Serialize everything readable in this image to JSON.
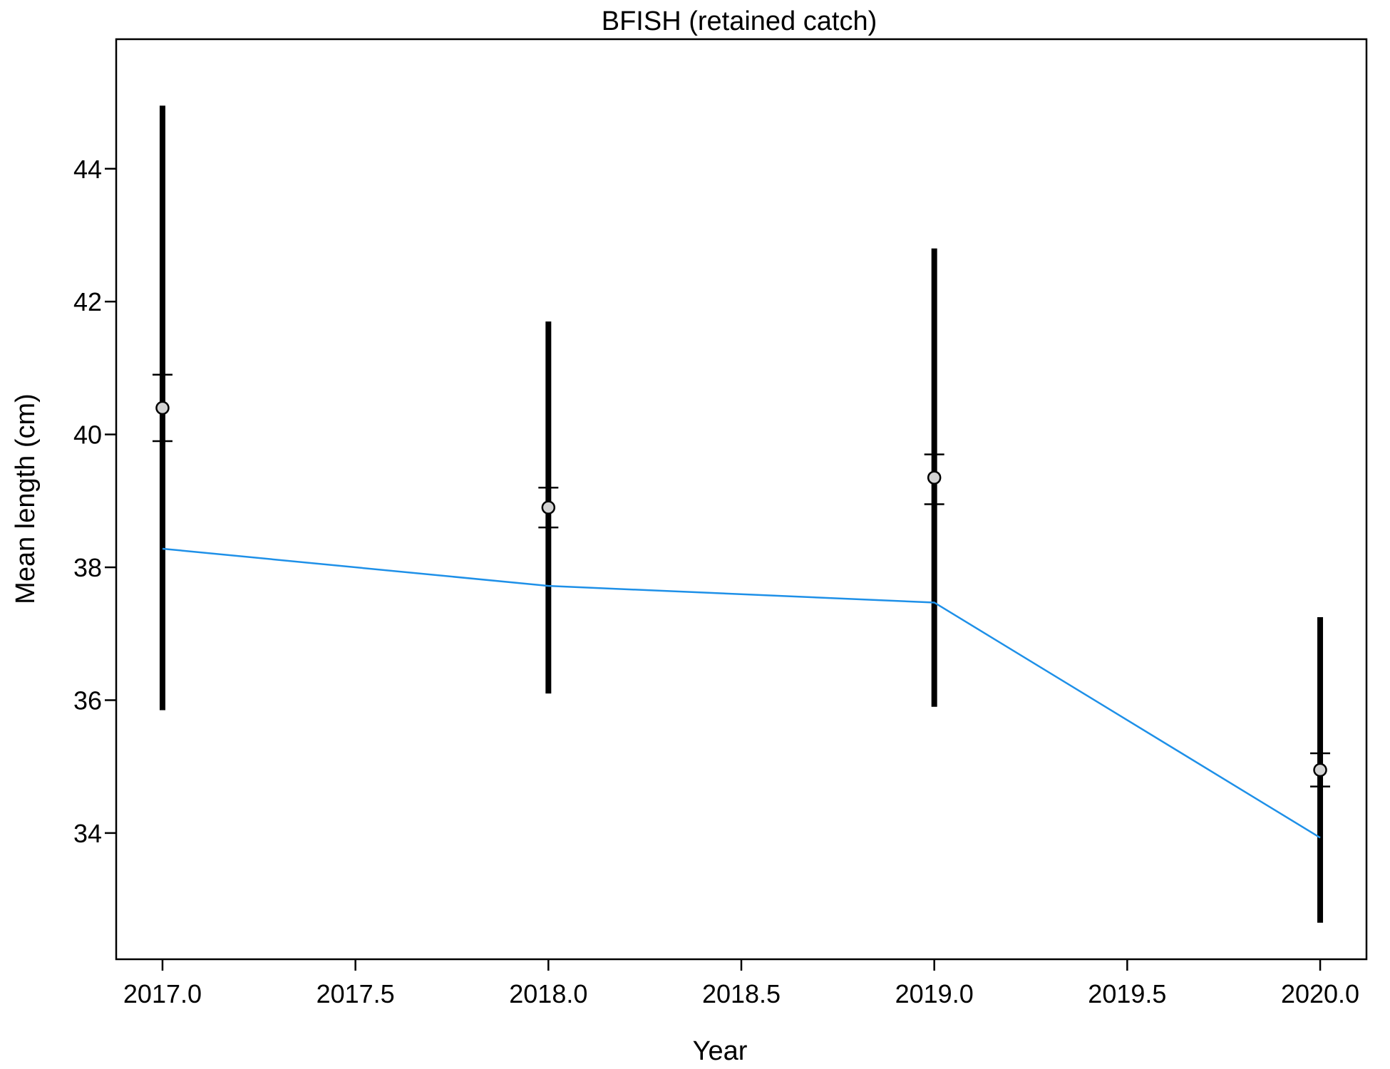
{
  "chart_data": {
    "type": "scatter",
    "title": "BFISH (retained catch)",
    "xlabel": "Year",
    "ylabel": "Mean length (cm)",
    "xlim": [
      2016.88,
      2020.12
    ],
    "ylim": [
      32.1,
      45.95
    ],
    "x_ticks": [
      2017.0,
      2017.5,
      2018.0,
      2018.5,
      2019.0,
      2019.5,
      2020.0
    ],
    "x_tick_labels": [
      "2017.0",
      "2017.5",
      "2018.0",
      "2018.5",
      "2019.0",
      "2019.5",
      "2020.0"
    ],
    "y_ticks": [
      34,
      36,
      38,
      40,
      42,
      44
    ],
    "y_tick_labels": [
      "34",
      "36",
      "38",
      "40",
      "42",
      "44"
    ],
    "grid": false,
    "legend": "none",
    "observed": {
      "x": [
        2017,
        2018,
        2019,
        2020
      ],
      "y": [
        40.4,
        38.9,
        39.35,
        34.95
      ],
      "interval_wide_low": [
        35.85,
        36.1,
        35.9,
        32.65
      ],
      "interval_wide_high": [
        44.95,
        41.7,
        42.8,
        37.25
      ],
      "interval_narrow_low": [
        39.9,
        38.6,
        38.95,
        34.7
      ],
      "interval_narrow_high": [
        40.9,
        39.2,
        39.7,
        35.2
      ]
    },
    "expected": {
      "x": [
        2017,
        2018,
        2019,
        2020
      ],
      "y": [
        38.28,
        37.72,
        37.47,
        33.93
      ]
    },
    "colors": {
      "expected_line": "#1E90E8",
      "observed_point_fill": "#D3D3D3",
      "error_bar": "#000000"
    }
  }
}
